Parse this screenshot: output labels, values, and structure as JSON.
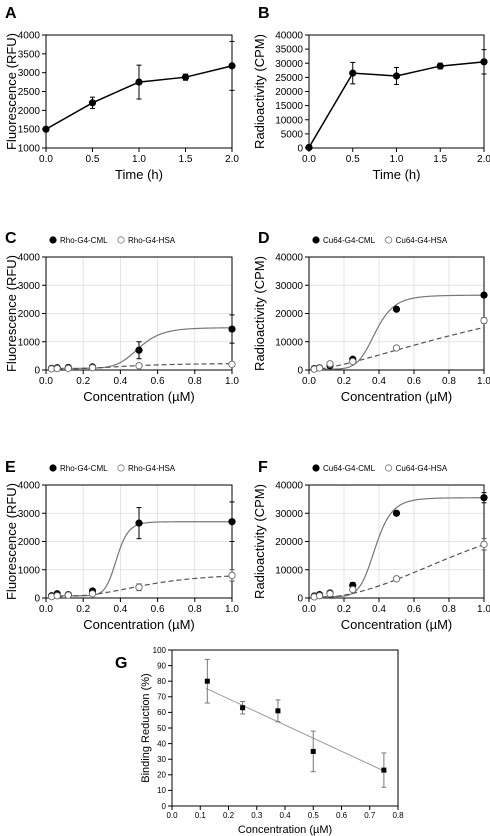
{
  "chart_data": [
    {
      "panel": "A",
      "type": "line",
      "xlabel": "Time (h)",
      "ylabel": "Fluorescence (RFU)",
      "xlim": [
        0,
        2
      ],
      "ylim": [
        1000,
        4000
      ],
      "xticks": [
        "0.0",
        "0.5",
        "1.0",
        "1.5",
        "2.0"
      ],
      "yticks": [
        "1000",
        "1500",
        "2000",
        "2500",
        "3000",
        "3500",
        "4000"
      ],
      "grid": false,
      "series": [
        {
          "marker": "filled",
          "line": "solid",
          "x": [
            0,
            0.5,
            1.0,
            1.5,
            2.0
          ],
          "y": [
            1500,
            2200,
            2750,
            2880,
            3180
          ],
          "err": [
            0,
            150,
            450,
            80,
            650
          ]
        }
      ]
    },
    {
      "panel": "B",
      "type": "line",
      "xlabel": "Time (h)",
      "ylabel": "Radioactivity (CPM)",
      "xlim": [
        0,
        2
      ],
      "ylim": [
        0,
        40000
      ],
      "xticks": [
        "0.0",
        "0.5",
        "1.0",
        "1.5",
        "2.0"
      ],
      "yticks": [
        "0",
        "5000",
        "10000",
        "15000",
        "20000",
        "25000",
        "30000",
        "35000",
        "40000"
      ],
      "grid": false,
      "series": [
        {
          "marker": "filled",
          "line": "solid",
          "x": [
            0,
            0.5,
            1.0,
            1.5,
            2.0
          ],
          "y": [
            200,
            26500,
            25500,
            29000,
            30500
          ],
          "err": [
            0,
            3800,
            3000,
            1000,
            4300
          ]
        }
      ]
    },
    {
      "panel": "C",
      "type": "scatter",
      "xlabel": "Concentration (µM)",
      "ylabel": "Fluorescence (RFU)",
      "xlim": [
        0,
        1
      ],
      "ylim": [
        0,
        4000
      ],
      "xticks": [
        "0.0",
        "0.2",
        "0.4",
        "0.6",
        "0.8",
        "1.0"
      ],
      "yticks": [
        "0",
        "1000",
        "2000",
        "3000",
        "4000"
      ],
      "grid": true,
      "legend": "top-left",
      "series": [
        {
          "name": "Rho-G4-CML",
          "marker": "filled",
          "line": "solid",
          "x": [
            0.03,
            0.06,
            0.12,
            0.25,
            0.5,
            1.0
          ],
          "y": [
            60,
            80,
            90,
            110,
            700,
            1450
          ],
          "err": [
            20,
            20,
            20,
            30,
            300,
            500
          ],
          "fit": {
            "min": 60,
            "max": 1500,
            "ec50": 0.5,
            "hill": 8
          }
        },
        {
          "name": "Rho-G4-HSA",
          "marker": "open",
          "line": "dashed",
          "x": [
            0.03,
            0.06,
            0.12,
            0.25,
            0.5,
            1.0
          ],
          "y": [
            40,
            50,
            60,
            80,
            150,
            200
          ],
          "err": [
            10,
            10,
            10,
            10,
            30,
            60
          ],
          "fit": {
            "min": 40,
            "max": 240,
            "ec50": 0.45,
            "hill": 3
          }
        }
      ]
    },
    {
      "panel": "D",
      "type": "scatter",
      "xlabel": "Concentration (µM)",
      "ylabel": "Radioactivity (CPM)",
      "xlim": [
        0,
        1
      ],
      "ylim": [
        0,
        40000
      ],
      "xticks": [
        "0.0",
        "0.2",
        "0.4",
        "0.6",
        "0.8",
        "1.0"
      ],
      "yticks": [
        "0",
        "10000",
        "20000",
        "30000",
        "40000"
      ],
      "grid": true,
      "legend": "top-left",
      "series": [
        {
          "name": "Cu64-G4-CML",
          "marker": "filled",
          "line": "solid",
          "x": [
            0.03,
            0.06,
            0.12,
            0.25,
            0.5,
            1.0
          ],
          "y": [
            500,
            800,
            1500,
            3800,
            21500,
            26500
          ],
          "err": [
            200,
            200,
            300,
            400,
            600,
            800
          ],
          "fit": {
            "min": 300,
            "max": 26500,
            "ec50": 0.38,
            "hill": 7
          }
        },
        {
          "name": "Cu64-G4-HSA",
          "marker": "open",
          "line": "dashed",
          "x": [
            0.03,
            0.06,
            0.12,
            0.25,
            0.5,
            1.0
          ],
          "y": [
            300,
            700,
            2200,
            3000,
            7800,
            17500
          ],
          "err": [
            200,
            200,
            300,
            300,
            700,
            1000
          ],
          "fit": {
            "min": 0,
            "max": 40000,
            "ec50": 1.4,
            "hill": 1.5
          }
        }
      ]
    },
    {
      "panel": "E",
      "type": "scatter",
      "xlabel": "Concentration (µM)",
      "ylabel": "Fluorescence (RFU)",
      "xlim": [
        0,
        1
      ],
      "ylim": [
        0,
        4000
      ],
      "xticks": [
        "0.0",
        "0.2",
        "0.4",
        "0.6",
        "0.8",
        "1.0"
      ],
      "yticks": [
        "0",
        "1000",
        "2000",
        "3000",
        "4000"
      ],
      "grid": true,
      "legend": "top-left",
      "series": [
        {
          "name": "Rho-G4-CML",
          "marker": "filled",
          "line": "solid",
          "x": [
            0.03,
            0.06,
            0.12,
            0.25,
            0.5,
            1.0
          ],
          "y": [
            80,
            150,
            120,
            250,
            2650,
            2700
          ],
          "err": [
            30,
            30,
            30,
            60,
            550,
            700
          ],
          "fit": {
            "min": 80,
            "max": 2700,
            "ec50": 0.38,
            "hill": 12
          }
        },
        {
          "name": "Rho-G4-HSA",
          "marker": "open",
          "line": "dashed",
          "x": [
            0.03,
            0.06,
            0.12,
            0.25,
            0.5,
            1.0
          ],
          "y": [
            50,
            80,
            100,
            150,
            380,
            800
          ],
          "err": [
            20,
            20,
            20,
            30,
            120,
            200
          ],
          "fit": {
            "min": 50,
            "max": 900,
            "ec50": 0.55,
            "hill": 3
          }
        }
      ]
    },
    {
      "panel": "F",
      "type": "scatter",
      "xlabel": "Concentration (µM)",
      "ylabel": "Radioactivity (CPM)",
      "xlim": [
        0,
        1
      ],
      "ylim": [
        0,
        40000
      ],
      "xticks": [
        "0.0",
        "0.2",
        "0.4",
        "0.6",
        "0.8",
        "1.0"
      ],
      "yticks": [
        "0",
        "10000",
        "20000",
        "30000",
        "40000"
      ],
      "grid": true,
      "legend": "top-left",
      "series": [
        {
          "name": "Cu64-G4-CML",
          "marker": "filled",
          "line": "solid",
          "x": [
            0.03,
            0.06,
            0.12,
            0.25,
            0.5,
            1.0
          ],
          "y": [
            700,
            1200,
            1800,
            4500,
            30000,
            35500
          ],
          "err": [
            200,
            200,
            300,
            1000,
            600,
            1800
          ],
          "fit": {
            "min": 500,
            "max": 35500,
            "ec50": 0.38,
            "hill": 8
          }
        },
        {
          "name": "Cu64-G4-HSA",
          "marker": "open",
          "line": "dashed",
          "x": [
            0.03,
            0.06,
            0.12,
            0.25,
            0.5,
            1.0
          ],
          "y": [
            400,
            800,
            1500,
            3000,
            6800,
            19000
          ],
          "err": [
            200,
            200,
            300,
            400,
            700,
            2000
          ],
          "fit": {
            "min": 0,
            "max": 40000,
            "ec50": 1.05,
            "hill": 2.2
          }
        }
      ]
    },
    {
      "panel": "G",
      "type": "scatter",
      "xlabel": "Concentration (µM)",
      "ylabel": "Binding Reduction (%)",
      "xlim": [
        0,
        0.8
      ],
      "ylim": [
        0,
        100
      ],
      "xticks": [
        "0.0",
        "0.1",
        "0.2",
        "0.3",
        "0.4",
        "0.5",
        "0.6",
        "0.7",
        "0.8"
      ],
      "yticks": [
        "0",
        "10",
        "20",
        "30",
        "40",
        "50",
        "60",
        "70",
        "80",
        "90",
        "100"
      ],
      "grid": false,
      "series": [
        {
          "marker": "square",
          "line": "none",
          "x": [
            0.125,
            0.25,
            0.375,
            0.5,
            0.75
          ],
          "y": [
            80,
            63,
            61,
            35,
            23
          ],
          "err": [
            14,
            4,
            7,
            13,
            11
          ],
          "fit": {
            "slope": -84,
            "intercept": 85.5
          }
        }
      ]
    }
  ]
}
